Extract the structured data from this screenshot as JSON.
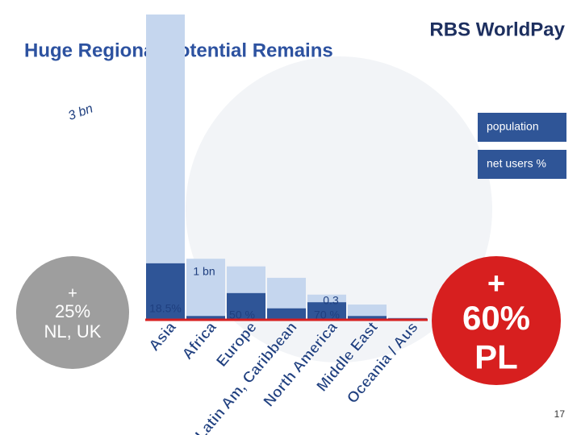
{
  "title": "Huge Regional Potential Remains",
  "logo": "RBS WorldPay",
  "page_number": "17",
  "chart_data": {
    "type": "bar",
    "categories": [
      "Asia",
      "Africa",
      "Europe",
      "Latin Am, Caribbean",
      "North America",
      "Middle East",
      "Oceania / Aus"
    ],
    "series": [
      {
        "name": "population",
        "color": "#c5d6ee",
        "values": [
          4.0,
          0.8,
          0.7,
          0.55,
          0.33,
          0.2,
          0.03
        ]
      },
      {
        "name": "net users %",
        "color": "#2f5597",
        "values": [
          0.74,
          0.05,
          0.35,
          0.15,
          0.23,
          0.05,
          0.02
        ]
      }
    ],
    "ylim": [
      0,
      4
    ],
    "annotations": [
      "3 bn",
      "1 bn",
      "18.5%",
      "50 %",
      "0.3",
      "70 %"
    ],
    "callouts": [
      {
        "lines": [
          "+",
          "25%",
          "NL, UK"
        ],
        "color": "#9e9e9e"
      },
      {
        "lines": [
          "+",
          "60%",
          "PL"
        ],
        "color": "#d71f1f"
      }
    ]
  }
}
